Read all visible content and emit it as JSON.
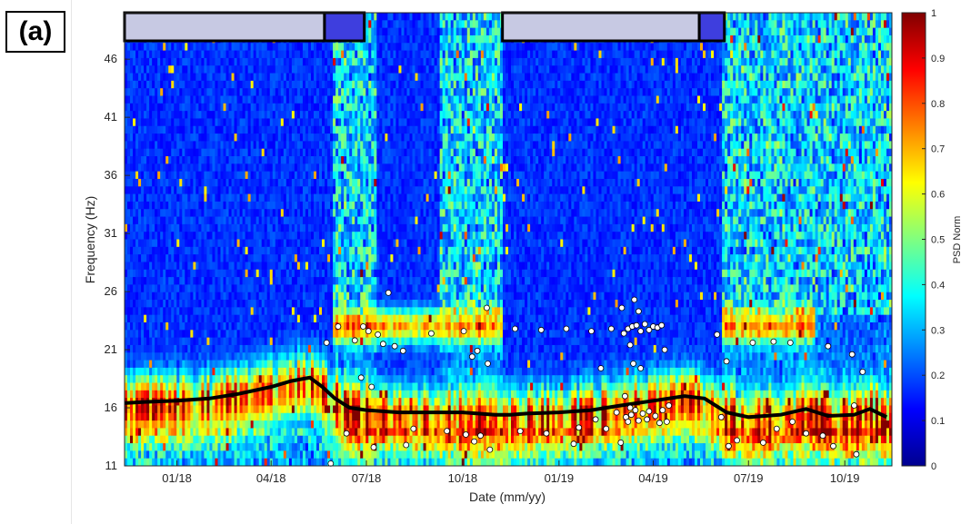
{
  "panel_label": "(a)",
  "chart_data": {
    "type": "heatmap",
    "title": "",
    "xlabel": "Date (mm/yy)",
    "ylabel": "Frequency (Hz)",
    "colorbar_label": "PSD Norm",
    "colormap": "jet",
    "x_axis": {
      "type": "date",
      "range": [
        "2017-11-12",
        "2019-11-15"
      ],
      "ticks": [
        {
          "date": "2018-01-01",
          "label": "01/18"
        },
        {
          "date": "2018-04-01",
          "label": "04/18"
        },
        {
          "date": "2018-07-01",
          "label": "07/18"
        },
        {
          "date": "2018-10-01",
          "label": "10/18"
        },
        {
          "date": "2019-01-01",
          "label": "01/19"
        },
        {
          "date": "2019-04-01",
          "label": "04/19"
        },
        {
          "date": "2019-07-01",
          "label": "07/19"
        },
        {
          "date": "2019-10-01",
          "label": "10/19"
        }
      ]
    },
    "y_axis": {
      "range": [
        11,
        50
      ],
      "ticks": [
        11,
        16,
        21,
        26,
        31,
        36,
        41,
        46
      ]
    },
    "colorbar": {
      "range": [
        0,
        1
      ],
      "ticks": [
        "0",
        "0.1",
        "0.2",
        "0.3",
        "0.4",
        "0.5",
        "0.6",
        "0.7",
        "0.8",
        "0.9",
        "1"
      ]
    },
    "grid": false,
    "period_bars": [
      {
        "start": "2017-11-12",
        "end": "2018-05-22",
        "color": "#c7c9e3"
      },
      {
        "start": "2018-05-22",
        "end": "2018-06-29",
        "color": "#3e3ede"
      },
      {
        "start": "2018-11-08",
        "end": "2019-05-15",
        "color": "#c7c9e3"
      },
      {
        "start": "2019-05-15",
        "end": "2019-06-08",
        "color": "#3e3ede"
      }
    ],
    "series": [
      {
        "type": "line",
        "color": "#000000",
        "points": [
          [
            "2017-11-12",
            16.4
          ],
          [
            "2017-12-01",
            16.5
          ],
          [
            "2018-01-01",
            16.6
          ],
          [
            "2018-02-01",
            16.8
          ],
          [
            "2018-03-01",
            17.2
          ],
          [
            "2018-04-01",
            17.8
          ],
          [
            "2018-04-20",
            18.3
          ],
          [
            "2018-05-08",
            18.6
          ],
          [
            "2018-05-20",
            17.8
          ],
          [
            "2018-06-01",
            16.8
          ],
          [
            "2018-06-15",
            16.0
          ],
          [
            "2018-07-01",
            15.8
          ],
          [
            "2018-08-01",
            15.6
          ],
          [
            "2018-09-01",
            15.6
          ],
          [
            "2018-10-01",
            15.6
          ],
          [
            "2018-11-01",
            15.4
          ],
          [
            "2018-11-15",
            15.4
          ],
          [
            "2018-12-01",
            15.5
          ],
          [
            "2019-01-01",
            15.6
          ],
          [
            "2019-02-01",
            15.8
          ],
          [
            "2019-03-01",
            16.2
          ],
          [
            "2019-04-01",
            16.6
          ],
          [
            "2019-05-01",
            17.0
          ],
          [
            "2019-05-20",
            16.8
          ],
          [
            "2019-06-10",
            15.6
          ],
          [
            "2019-07-01",
            15.2
          ],
          [
            "2019-08-01",
            15.4
          ],
          [
            "2019-08-25",
            15.9
          ],
          [
            "2019-09-15",
            15.3
          ],
          [
            "2019-10-10",
            15.4
          ],
          [
            "2019-10-25",
            15.9
          ],
          [
            "2019-11-10",
            15.2
          ]
        ]
      },
      {
        "type": "scatter",
        "color": "#ffffff",
        "edgecolor": "#000000",
        "points": [
          [
            "2018-05-24",
            21.6
          ],
          [
            "2018-05-28",
            11.2
          ],
          [
            "2018-06-04",
            23.0
          ],
          [
            "2018-06-12",
            13.8
          ],
          [
            "2018-06-20",
            21.8
          ],
          [
            "2018-06-26",
            18.6
          ],
          [
            "2018-06-28",
            23.0
          ],
          [
            "2018-07-03",
            22.6
          ],
          [
            "2018-07-06",
            17.8
          ],
          [
            "2018-07-08",
            12.6
          ],
          [
            "2018-07-12",
            22.3
          ],
          [
            "2018-07-17",
            21.5
          ],
          [
            "2018-07-22",
            25.9
          ],
          [
            "2018-07-28",
            21.3
          ],
          [
            "2018-08-05",
            20.9
          ],
          [
            "2018-08-08",
            12.8
          ],
          [
            "2018-08-15",
            14.2
          ],
          [
            "2018-09-01",
            22.4
          ],
          [
            "2018-09-16",
            14.0
          ],
          [
            "2018-10-02",
            22.6
          ],
          [
            "2018-10-04",
            13.7
          ],
          [
            "2018-10-10",
            20.4
          ],
          [
            "2018-10-12",
            13.1
          ],
          [
            "2018-10-15",
            20.9
          ],
          [
            "2018-10-18",
            13.6
          ],
          [
            "2018-10-24",
            24.6
          ],
          [
            "2018-10-25",
            19.8
          ],
          [
            "2018-10-27",
            12.4
          ],
          [
            "2018-11-20",
            22.8
          ],
          [
            "2018-11-25",
            14.0
          ],
          [
            "2018-12-15",
            22.7
          ],
          [
            "2018-12-20",
            13.8
          ],
          [
            "2019-01-08",
            22.8
          ],
          [
            "2019-01-15",
            12.9
          ],
          [
            "2019-01-20",
            14.3
          ],
          [
            "2019-02-01",
            22.6
          ],
          [
            "2019-02-05",
            15.0
          ],
          [
            "2019-02-10",
            19.4
          ],
          [
            "2019-02-15",
            14.2
          ],
          [
            "2019-02-20",
            22.8
          ],
          [
            "2019-02-25",
            15.6
          ],
          [
            "2019-03-01",
            13.0
          ],
          [
            "2019-03-02",
            24.6
          ],
          [
            "2019-03-04",
            22.4
          ],
          [
            "2019-03-05",
            17.0
          ],
          [
            "2019-03-06",
            15.2
          ],
          [
            "2019-03-08",
            22.8
          ],
          [
            "2019-03-08",
            14.8
          ],
          [
            "2019-03-10",
            21.4
          ],
          [
            "2019-03-10",
            16.0
          ],
          [
            "2019-03-11",
            15.4
          ],
          [
            "2019-03-12",
            23.0
          ],
          [
            "2019-03-13",
            19.8
          ],
          [
            "2019-03-14",
            25.3
          ],
          [
            "2019-03-15",
            15.8
          ],
          [
            "2019-03-16",
            23.1
          ],
          [
            "2019-03-18",
            24.3
          ],
          [
            "2019-03-18",
            14.9
          ],
          [
            "2019-03-20",
            22.6
          ],
          [
            "2019-03-20",
            19.4
          ],
          [
            "2019-03-22",
            15.5
          ],
          [
            "2019-03-24",
            23.2
          ],
          [
            "2019-03-26",
            15.0
          ],
          [
            "2019-03-28",
            22.7
          ],
          [
            "2019-03-28",
            15.7
          ],
          [
            "2019-04-01",
            23.0
          ],
          [
            "2019-04-03",
            15.3
          ],
          [
            "2019-04-05",
            22.9
          ],
          [
            "2019-04-07",
            14.7
          ],
          [
            "2019-04-09",
            23.1
          ],
          [
            "2019-04-10",
            15.8
          ],
          [
            "2019-04-12",
            21.0
          ],
          [
            "2019-04-14",
            14.8
          ],
          [
            "2019-04-16",
            16.2
          ],
          [
            "2019-06-01",
            22.3
          ],
          [
            "2019-06-05",
            15.2
          ],
          [
            "2019-06-10",
            20.0
          ],
          [
            "2019-06-12",
            12.7
          ],
          [
            "2019-06-20",
            13.2
          ],
          [
            "2019-07-05",
            21.6
          ],
          [
            "2019-07-15",
            13.0
          ],
          [
            "2019-07-25",
            21.7
          ],
          [
            "2019-07-28",
            14.2
          ],
          [
            "2019-08-10",
            21.6
          ],
          [
            "2019-08-12",
            14.8
          ],
          [
            "2019-08-25",
            13.8
          ],
          [
            "2019-09-10",
            13.6
          ],
          [
            "2019-09-15",
            21.3
          ],
          [
            "2019-09-20",
            12.7
          ],
          [
            "2019-10-08",
            20.6
          ],
          [
            "2019-10-10",
            16.2
          ],
          [
            "2019-10-12",
            12.0
          ],
          [
            "2019-10-18",
            19.1
          ]
        ]
      }
    ]
  }
}
